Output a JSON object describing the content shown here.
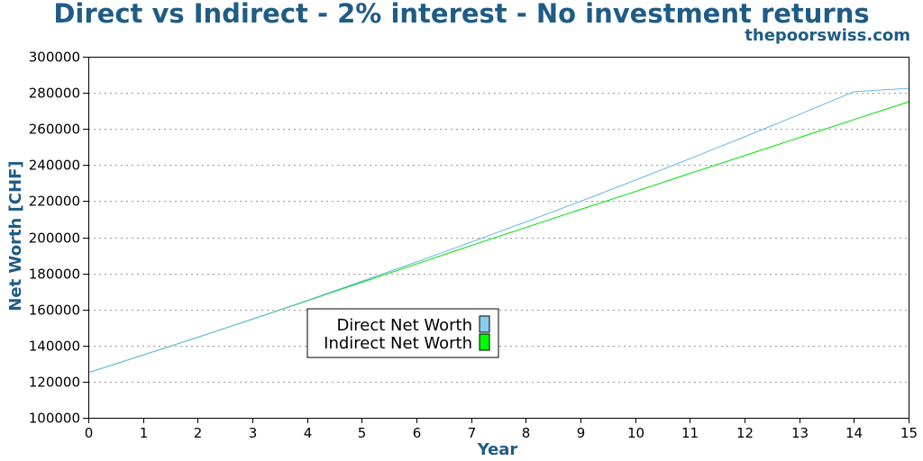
{
  "title": "Direct vs Indirect - 2% interest - No investment returns",
  "subtitle": "thepoorswiss.com",
  "chart_data": {
    "type": "line",
    "xlabel": "Year",
    "ylabel": "Net Worth [CHF]",
    "xlim": [
      0,
      15
    ],
    "ylim": [
      100000,
      300000
    ],
    "x_ticks": [
      0,
      1,
      2,
      3,
      4,
      5,
      6,
      7,
      8,
      9,
      10,
      11,
      12,
      13,
      14,
      15
    ],
    "y_ticks": [
      100000,
      120000,
      140000,
      160000,
      180000,
      200000,
      220000,
      240000,
      260000,
      280000,
      300000
    ],
    "grid": "horizontal-dotted",
    "legend_position": "center-left",
    "x": [
      0,
      1,
      2,
      3,
      4,
      5,
      6,
      7,
      8,
      9,
      10,
      11,
      12,
      13,
      14,
      15
    ],
    "series": [
      {
        "name": "Direct Net Worth",
        "color": "#6bb6e8",
        "values": [
          125000,
          134700,
          144600,
          154700,
          165000,
          175600,
          186300,
          197300,
          208500,
          219900,
          231600,
          243500,
          255600,
          268000,
          280600,
          282500
        ]
      },
      {
        "name": "Indirect Net Worth",
        "color": "#00dd00",
        "values": [
          125000,
          134700,
          144600,
          154600,
          164800,
          175000,
          185200,
          195400,
          205400,
          215400,
          225300,
          235300,
          245200,
          255200,
          265200,
          275000
        ]
      }
    ]
  }
}
